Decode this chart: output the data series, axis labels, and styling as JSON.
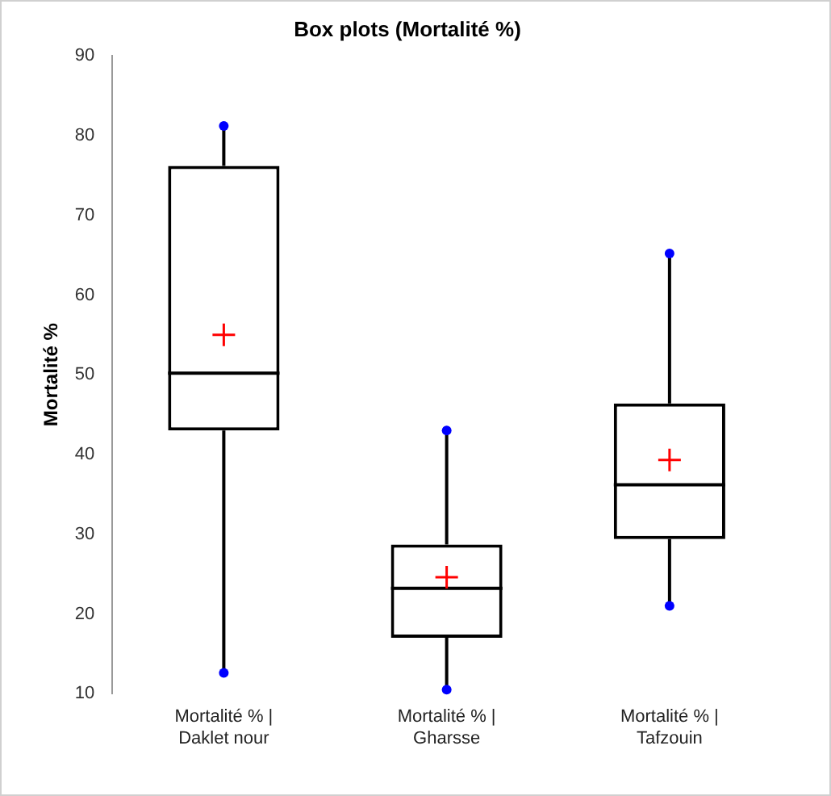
{
  "chart_data": {
    "type": "box",
    "title": "Box plots (Mortalité %)",
    "ylabel": "Mortalité %",
    "categories": [
      "Mortalité % | Daklet nour",
      "Mortalité % | Gharsse",
      "Mortalité % | Tafzouin"
    ],
    "color": "#000000",
    "boxes": [
      {
        "low": 12.6,
        "q1": 43.0,
        "median": 50.2,
        "q3": 76.2,
        "high": 81.2,
        "mean": 55.0
      },
      {
        "low": 10.5,
        "q1": 17.0,
        "median": 23.2,
        "q3": 28.7,
        "high": 43.0,
        "mean": 24.6
      },
      {
        "low": 21.0,
        "q1": 29.4,
        "median": 36.2,
        "q3": 46.4,
        "high": 65.2,
        "mean": 39.3
      }
    ],
    "series": [
      {
        "type": "scatter",
        "color": "#0000ff",
        "x": [
          "Mortalité % | Daklet nour",
          "Mortalité % | Daklet nour",
          "Mortalité % | Gharsse",
          "Mortalité % | Gharsse",
          "Mortalité % | Tafzouin",
          "Mortalité % | Tafzouin"
        ],
        "values": [
          12.6,
          81.2,
          10.5,
          43.0,
          21.0,
          65.2
        ]
      }
    ],
    "marker": "circle",
    "ylim": [
      10,
      90
    ],
    "yticks": [
      10,
      20,
      30,
      40,
      50,
      60,
      70,
      80,
      90
    ]
  }
}
